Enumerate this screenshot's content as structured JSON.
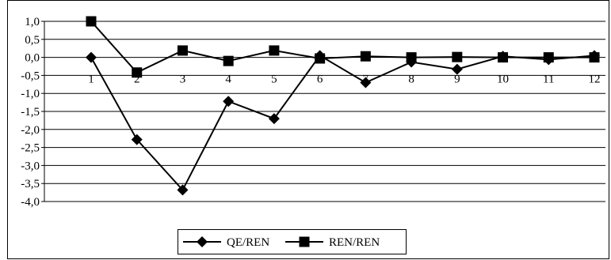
{
  "chart_data": {
    "type": "line",
    "title": "",
    "xlabel": "",
    "ylabel": "",
    "categories": [
      "1",
      "2",
      "3",
      "4",
      "5",
      "6",
      "7",
      "8",
      "9",
      "10",
      "11",
      "12"
    ],
    "ylim": [
      -4.0,
      1.0
    ],
    "y_ticks": [
      "1,0",
      "0,5",
      "0,0",
      "-0,5",
      "-1,0",
      "-1,5",
      "-2,0",
      "-2,5",
      "-3,0",
      "-3,5",
      "-4,0"
    ],
    "grid": "horizontal",
    "legend_position": "bottom",
    "series": [
      {
        "name": "QE/REN",
        "marker": "diamond",
        "color": "#000000",
        "values": [
          0.0,
          -2.28,
          -3.68,
          -1.22,
          -1.7,
          0.05,
          -0.7,
          -0.13,
          -0.33,
          0.03,
          -0.06,
          0.05
        ]
      },
      {
        "name": "REN/REN",
        "marker": "square",
        "color": "#000000",
        "values": [
          1.0,
          -0.42,
          0.19,
          -0.1,
          0.19,
          -0.03,
          0.03,
          0.0,
          0.01,
          0.0,
          0.0,
          0.0
        ]
      }
    ]
  }
}
